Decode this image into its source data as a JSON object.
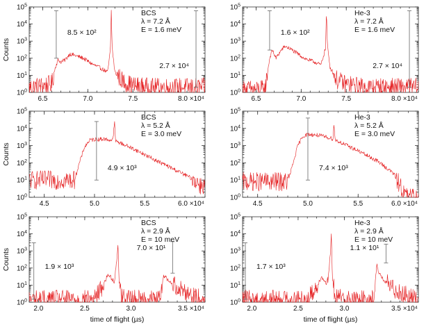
{
  "figure": {
    "xlabel": "time of flight (µs)",
    "ylabel": "Counts"
  },
  "chart_data": [
    {
      "type": "line",
      "detector": "BCS",
      "legend": [
        "BCS",
        "λ = 7.2 Å",
        "E = 1.6 meV"
      ],
      "xlim": [
        6.35,
        8.3
      ],
      "ylim": [
        1,
        100000
      ],
      "yscale": "log",
      "xticks": [
        6.5,
        7.0,
        7.5
      ],
      "xtick_labels": [
        "6.5",
        "7.0",
        "7.5"
      ],
      "x_multiplier": "8.0 ×10⁴",
      "yticks": [
        1,
        10,
        100,
        1000,
        10000,
        100000
      ],
      "ytick_labels": [
        "10⁰",
        "10¹",
        "10²",
        "10³",
        "10⁴",
        "10⁵"
      ],
      "ylabel": "Counts",
      "xlabel": "",
      "annotations": [
        {
          "text": "8.5 × 10²",
          "bar_x": 6.65,
          "y_low": 100,
          "y_high": 60000
        },
        {
          "text": "2.7 × 10⁴",
          "bar_x": 8.2,
          "y_low": 2,
          "y_high": 60000
        }
      ],
      "series": [
        {
          "name": "BCS",
          "x": [
            6.35,
            6.5,
            6.6,
            6.64,
            6.67,
            6.7,
            6.75,
            6.8,
            6.85,
            6.95,
            7.05,
            7.15,
            7.22,
            7.25,
            7.26,
            7.27,
            7.3,
            7.4,
            7.5,
            7.7,
            7.9,
            8.1,
            8.3
          ],
          "y": [
            2,
            2.5,
            3,
            30,
            80,
            60,
            80,
            180,
            150,
            100,
            45,
            25,
            15,
            300,
            60000,
            400,
            15,
            4,
            2.5,
            2,
            2,
            2,
            2
          ]
        }
      ]
    },
    {
      "type": "line",
      "detector": "He-3",
      "legend": [
        "He-3",
        "λ = 7.2 Å",
        "E = 1.6 meV"
      ],
      "xlim": [
        6.35,
        8.3
      ],
      "ylim": [
        1,
        100000
      ],
      "yscale": "log",
      "xticks": [
        6.5,
        7.0,
        7.5
      ],
      "xtick_labels": [
        "6.5",
        "7.0",
        "7.5"
      ],
      "x_multiplier": "8.0 ×10⁴",
      "yticks": [
        1,
        10,
        100,
        1000,
        10000,
        100000
      ],
      "ytick_labels": [
        "10⁰",
        "10¹",
        "10²",
        "10³",
        "10⁴",
        "10⁵"
      ],
      "ylabel": "",
      "xlabel": "",
      "annotations": [
        {
          "text": "1.6 × 10²",
          "bar_x": 6.65,
          "y_low": 300,
          "y_high": 60000
        },
        {
          "text": "2.7 × 10⁴",
          "bar_x": 8.2,
          "y_low": 2,
          "y_high": 60000
        }
      ],
      "series": [
        {
          "name": "He-3",
          "x": [
            6.35,
            6.5,
            6.6,
            6.65,
            6.68,
            6.72,
            6.78,
            6.82,
            6.88,
            6.95,
            7.05,
            7.15,
            7.22,
            7.27,
            7.28,
            7.29,
            7.32,
            7.4,
            7.5,
            7.7,
            7.9,
            8.1,
            8.3
          ],
          "y": [
            1.5,
            1.5,
            1.5,
            100,
            300,
            100,
            300,
            500,
            350,
            200,
            90,
            60,
            40,
            400,
            60000,
            600,
            30,
            5,
            3,
            2,
            2,
            2,
            2
          ]
        }
      ]
    },
    {
      "type": "line",
      "detector": "BCS",
      "legend": [
        "BCS",
        "λ = 5.2 Å",
        "E = 3.0 meV"
      ],
      "xlim": [
        4.35,
        6.1
      ],
      "ylim": [
        1,
        100000
      ],
      "yscale": "log",
      "xticks": [
        4.5,
        5.0,
        5.5
      ],
      "xtick_labels": [
        "4.5",
        "5.0",
        "5.5"
      ],
      "x_multiplier": "6.0 ×10⁴",
      "yticks": [
        1,
        10,
        100,
        1000,
        10000,
        100000
      ],
      "ytick_labels": [
        "10⁰",
        "10¹",
        "10²",
        "10³",
        "10⁴",
        "10⁵"
      ],
      "ylabel": "Counts",
      "xlabel": "",
      "annotations": [
        {
          "text": "4.9 × 10³",
          "bar_x": 5.02,
          "y_low": 10,
          "y_high": 25000
        }
      ],
      "series": [
        {
          "name": "BCS",
          "x": [
            4.35,
            4.5,
            4.7,
            4.8,
            4.85,
            4.9,
            4.95,
            5.0,
            5.1,
            5.18,
            5.2,
            5.21,
            5.22,
            5.25,
            5.4,
            5.6,
            5.8,
            6.0,
            6.05
          ],
          "y": [
            10,
            10,
            10,
            10,
            100,
            800,
            2000,
            2300,
            2400,
            2000,
            20000,
            1800,
            1700,
            1500,
            600,
            150,
            40,
            10,
            5
          ]
        }
      ]
    },
    {
      "type": "line",
      "detector": "He-3",
      "legend": [
        "He-3",
        "λ = 5.2 Å",
        "E = 3.0 meV"
      ],
      "xlim": [
        4.35,
        6.1
      ],
      "ylim": [
        1,
        100000
      ],
      "yscale": "log",
      "xticks": [
        4.5,
        5.0,
        5.5
      ],
      "xtick_labels": [
        "4.5",
        "5.0",
        "5.5"
      ],
      "x_multiplier": "6.0 ×10⁴",
      "yticks": [
        1,
        10,
        100,
        1000,
        10000,
        100000
      ],
      "ytick_labels": [
        "10⁰",
        "10¹",
        "10²",
        "10³",
        "10⁴",
        "10⁵"
      ],
      "ylabel": "",
      "xlabel": "",
      "annotations": [
        {
          "text": "7.4 × 10³",
          "bar_x": 5.0,
          "y_low": 10,
          "y_high": 40000
        }
      ],
      "series": [
        {
          "name": "He-3",
          "x": [
            4.35,
            4.5,
            4.7,
            4.8,
            4.85,
            4.9,
            4.95,
            5.0,
            5.1,
            5.2,
            5.25,
            5.26,
            5.27,
            5.3,
            5.5,
            5.7,
            5.85,
            5.92,
            5.96,
            6.0
          ],
          "y": [
            8,
            8,
            8,
            8,
            80,
            1000,
            3500,
            4500,
            4000,
            3000,
            2500,
            20000,
            2300,
            1800,
            500,
            120,
            25,
            5,
            1.5,
            1
          ]
        }
      ]
    },
    {
      "type": "line",
      "detector": "BCS",
      "legend": [
        "BCS",
        "λ = 2.9 Å",
        "E = 10 meV"
      ],
      "xlim": [
        1.9,
        3.8
      ],
      "ylim": [
        1,
        100000
      ],
      "yscale": "log",
      "xticks": [
        2.0,
        2.5,
        3.0
      ],
      "xtick_labels": [
        "2.0",
        "2.5",
        "3.0"
      ],
      "x_multiplier": "3.5 ×10⁴",
      "yticks": [
        1,
        10,
        100,
        1000,
        10000,
        100000
      ],
      "ytick_labels": [
        "10⁰",
        "10¹",
        "10²",
        "10³",
        "10⁴",
        "10⁵"
      ],
      "ylabel": "Counts",
      "xlabel": "time of flight (µs)",
      "annotations": [
        {
          "text": "1.9 × 10³",
          "bar_x": 1.95,
          "y_low": 1.5,
          "y_high": 3000
        },
        {
          "text": "7.0 × 10¹",
          "bar_x": 3.45,
          "y_low": 50,
          "y_high": 3500
        }
      ],
      "series": [
        {
          "name": "BCS",
          "x": [
            1.9,
            2.3,
            2.6,
            2.7,
            2.75,
            2.78,
            2.82,
            2.85,
            2.86,
            2.87,
            2.9,
            3.0,
            3.2,
            3.32,
            3.35,
            3.37,
            3.42,
            3.5,
            3.6,
            3.7,
            3.8
          ],
          "y": [
            1.5,
            1.5,
            1.5,
            10,
            40,
            30,
            15,
            500,
            3000,
            20,
            2,
            1.5,
            1.5,
            1.5,
            40,
            30,
            15,
            8,
            4,
            2,
            1.5
          ]
        }
      ]
    },
    {
      "type": "line",
      "detector": "He-3",
      "legend": [
        "He-3",
        "λ = 2.9 Å",
        "E = 10 meV"
      ],
      "xlim": [
        1.9,
        3.8
      ],
      "ylim": [
        1,
        100000
      ],
      "yscale": "log",
      "xticks": [
        2.0,
        2.5,
        3.0
      ],
      "xtick_labels": [
        "2.0",
        "2.5",
        "3.0"
      ],
      "x_multiplier": "3.5 ×10⁴",
      "yticks": [
        1,
        10,
        100,
        1000,
        10000,
        100000
      ],
      "ytick_labels": [
        "10⁰",
        "10¹",
        "10²",
        "10³",
        "10⁴",
        "10⁵"
      ],
      "ylabel": "",
      "xlabel": "time of flight (µs)",
      "annotations": [
        {
          "text": "1.7 × 10³",
          "bar_x": 1.93,
          "y_low": 1.5,
          "y_high": 3000
        },
        {
          "text": "1.1 × 10¹",
          "bar_x": 3.45,
          "y_low": 200,
          "y_high": 2500
        }
      ],
      "series": [
        {
          "name": "He-3",
          "x": [
            1.9,
            2.3,
            2.6,
            2.7,
            2.75,
            2.78,
            2.82,
            2.85,
            2.86,
            2.87,
            2.9,
            3.0,
            3.2,
            3.32,
            3.35,
            3.37,
            3.42,
            3.5,
            3.6,
            3.7,
            3.8
          ],
          "y": [
            1.5,
            1.5,
            1.5,
            8,
            30,
            20,
            10,
            800,
            10000,
            30,
            2,
            1.5,
            1.5,
            1.5,
            200,
            60,
            20,
            8,
            4,
            2,
            1.5
          ]
        }
      ]
    }
  ]
}
